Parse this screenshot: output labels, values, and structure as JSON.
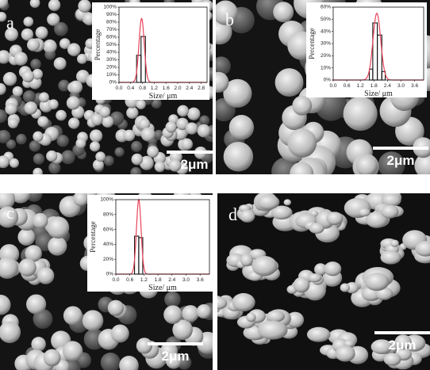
{
  "panels": [
    {
      "id": "a",
      "label": "a",
      "scale_bar": "2μm",
      "inset": {
        "ylabel": "Percentage",
        "xlabel": "Size/ μm",
        "yticks": [
          "0%",
          "10%",
          "20%",
          "30%",
          "40%",
          "50%",
          "60%",
          "70%",
          "80%",
          "90%",
          "100%"
        ],
        "ymax": 100,
        "xticks": [
          "0.0",
          "0.4",
          "0.8",
          "1.2",
          "1.6",
          "2.0",
          "2.4",
          "2.8"
        ],
        "xmin": 0.0,
        "xmax": 3.0,
        "bars": [
          {
            "x0": 0.6,
            "x1": 0.75,
            "v": 36
          },
          {
            "x0": 0.75,
            "x1": 0.9,
            "v": 61
          }
        ],
        "curve": {
          "mu": 0.77,
          "sigma": 0.09,
          "peak": 85
        }
      }
    },
    {
      "id": "b",
      "label": "b",
      "scale_bar": "2μm",
      "inset": {
        "ylabel": "Percentage",
        "xlabel": "Size/ μm",
        "yticks": [
          "0%",
          "10%",
          "20%",
          "30%",
          "40%",
          "50%",
          "60%"
        ],
        "ymax": 60,
        "xticks": [
          "0.0",
          "0.6",
          "1.2",
          "1.8",
          "2.4",
          "3.0",
          "3.6"
        ],
        "xmin": 0.0,
        "xmax": 4.0,
        "bars": [
          {
            "x0": 1.6,
            "x1": 1.75,
            "v": 9
          },
          {
            "x0": 1.75,
            "x1": 1.95,
            "v": 47
          },
          {
            "x0": 1.95,
            "x1": 2.15,
            "v": 37
          },
          {
            "x0": 2.15,
            "x1": 2.3,
            "v": 7
          }
        ],
        "curve": {
          "mu": 1.93,
          "sigma": 0.17,
          "peak": 55
        }
      }
    },
    {
      "id": "c",
      "label": "c",
      "scale_bar": "2μm",
      "inset": {
        "ylabel": "Percentage",
        "xlabel": "Size/ μm",
        "yticks": [
          "0%",
          "20%",
          "40%",
          "60%",
          "80%",
          "100%"
        ],
        "ymax": 100,
        "xticks": [
          "0.0",
          "0.6",
          "1.2",
          "1.8",
          "2.4",
          "3.0",
          "3.6"
        ],
        "xmin": 0.0,
        "xmax": 4.0,
        "bars": [
          {
            "x0": 0.8,
            "x1": 0.98,
            "v": 51
          },
          {
            "x0": 0.98,
            "x1": 1.15,
            "v": 49
          }
        ],
        "curve": {
          "mu": 0.98,
          "sigma": 0.1,
          "peak": 100
        }
      }
    },
    {
      "id": "d",
      "label": "d",
      "scale_bar": "2μm"
    }
  ],
  "colors": {
    "curve": "#e8455a",
    "bar_edge": "#111111",
    "particle": "#cfcfcf",
    "background": "#0e0e0e"
  }
}
